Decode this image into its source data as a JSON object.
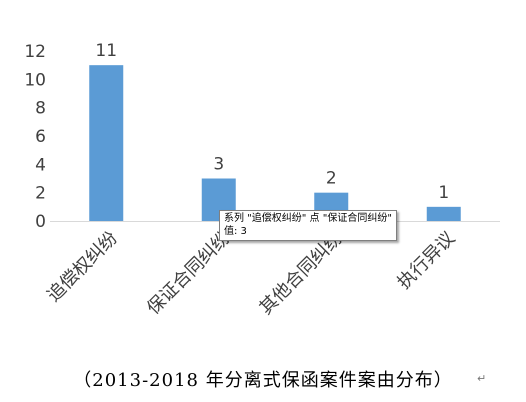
{
  "chart_data": {
    "type": "bar",
    "categories": [
      "追偿权纠纷",
      "保证合同纠纷",
      "其他合同纠纷",
      "执行异议"
    ],
    "values": [
      11,
      3,
      2,
      1
    ],
    "ylim": [
      0,
      12
    ],
    "yticks": [
      0,
      2,
      4,
      6,
      8,
      10,
      12
    ],
    "grid": false,
    "legend": "none",
    "bar_color": "#5b9bd5",
    "axis_color": "#d9d9d9"
  },
  "tooltip": {
    "line1": "系列 \"追偿权纠纷\" 点 \"保证合同纠纷\"",
    "line2": "值: 3"
  },
  "caption": "（2013-2018 年分离式保函案件案由分布）",
  "return_mark": "↵"
}
